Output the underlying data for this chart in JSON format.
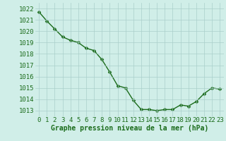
{
  "x": [
    0,
    1,
    2,
    3,
    4,
    5,
    6,
    7,
    8,
    9,
    10,
    11,
    12,
    13,
    14,
    15,
    16,
    17,
    18,
    19,
    20,
    21,
    22,
    23
  ],
  "y": [
    1021.7,
    1020.9,
    1020.2,
    1019.5,
    1019.2,
    1019.0,
    1018.5,
    1018.3,
    1017.5,
    1016.4,
    1015.2,
    1015.0,
    1013.9,
    1013.1,
    1013.1,
    1013.0,
    1013.1,
    1013.1,
    1013.5,
    1013.4,
    1013.8,
    1014.5,
    1015.0,
    1014.9
  ],
  "line_color": "#1a6b1a",
  "marker_color": "#1a6b1a",
  "bg_color": "#d0eee8",
  "grid_color": "#aacfca",
  "xlabel": "Graphe pression niveau de la mer (hPa)",
  "xlabel_color": "#1a6b1a",
  "tick_color": "#1a6b1a",
  "ylim_min": 1012.5,
  "ylim_max": 1022.5,
  "yticks": [
    1013,
    1014,
    1015,
    1016,
    1017,
    1018,
    1019,
    1020,
    1021,
    1022
  ],
  "xticks": [
    0,
    1,
    2,
    3,
    4,
    5,
    6,
    7,
    8,
    9,
    10,
    11,
    12,
    13,
    14,
    15,
    16,
    17,
    18,
    19,
    20,
    21,
    22,
    23
  ],
  "xlabel_fontsize": 7.0,
  "tick_fontsize": 6.5,
  "line_width": 1.0,
  "marker_size": 2.5
}
